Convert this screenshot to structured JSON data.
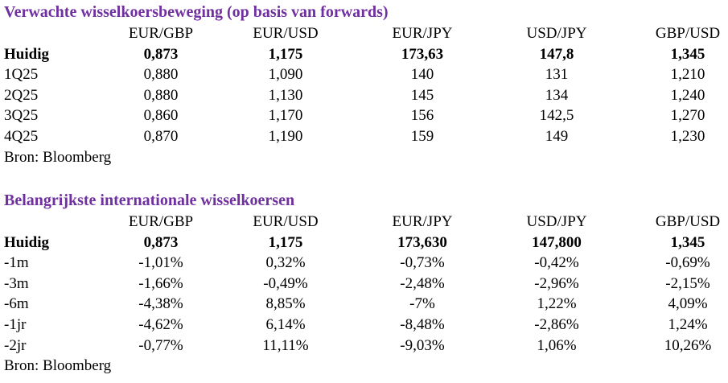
{
  "tables": [
    {
      "title": "Verwachte wisselkoersbeweging (op basis van forwards)",
      "headers": [
        "EUR/GBP",
        "EUR/USD",
        "EUR/JPY",
        "USD/JPY",
        "GBP/USD"
      ],
      "rows": [
        {
          "label": "Huidig",
          "cells": [
            "0,873",
            "1,175",
            "173,63",
            "147,8",
            "1,345"
          ]
        },
        {
          "label": "1Q25",
          "cells": [
            "0,880",
            "1,090",
            "140",
            "131",
            "1,210"
          ]
        },
        {
          "label": "2Q25",
          "cells": [
            "0,880",
            "1,130",
            "145",
            "134",
            "1,240"
          ]
        },
        {
          "label": "3Q25",
          "cells": [
            "0,860",
            "1,170",
            "156",
            "142,5",
            "1,270"
          ]
        },
        {
          "label": "4Q25",
          "cells": [
            "0,870",
            "1,190",
            "159",
            "149",
            "1,230"
          ]
        }
      ],
      "source": "Bron: Bloomberg"
    },
    {
      "title": "Belangrijkste internationale wisselkoersen",
      "headers": [
        "EUR/GBP",
        "EUR/USD",
        "EUR/JPY",
        "USD/JPY",
        "GBP/USD"
      ],
      "rows": [
        {
          "label": "Huidig",
          "cells": [
            "0,873",
            "1,175",
            "173,630",
            "147,800",
            "1,345"
          ]
        },
        {
          "label": "-1m",
          "cells": [
            "-1,01%",
            "0,32%",
            "-0,73%",
            "-0,42%",
            "-0,69%"
          ]
        },
        {
          "label": "-3m",
          "cells": [
            "-1,66%",
            "-0,49%",
            "-2,48%",
            "-2,96%",
            "-2,15%"
          ]
        },
        {
          "label": "-6m",
          "cells": [
            "-4,38%",
            "8,85%",
            "-7%",
            "1,22%",
            "4,09%"
          ]
        },
        {
          "label": "-1jr",
          "cells": [
            "-4,62%",
            "6,14%",
            "-8,48%",
            "-2,86%",
            "1,24%"
          ]
        },
        {
          "label": "-2jr",
          "cells": [
            "-0,77%",
            "11,11%",
            "-9,03%",
            "1,06%",
            "10,26%"
          ]
        }
      ],
      "source": "Bron: Bloomberg"
    }
  ]
}
